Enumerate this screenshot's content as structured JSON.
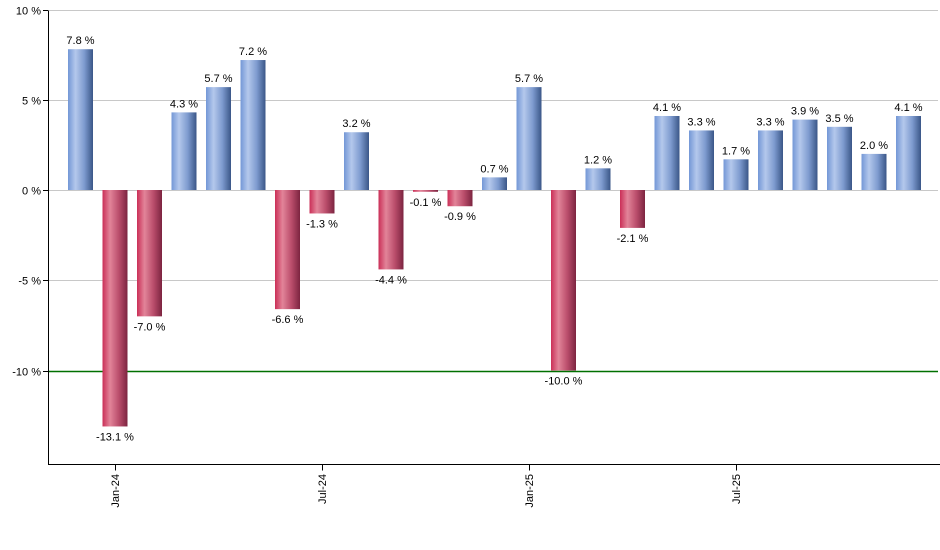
{
  "chart_data": {
    "type": "bar",
    "title": "",
    "xlabel": "",
    "ylabel": "",
    "unit": "%",
    "values": [
      7.8,
      -13.1,
      -7.0,
      4.3,
      5.7,
      7.2,
      -6.6,
      -1.3,
      3.2,
      -4.4,
      -0.1,
      -0.9,
      0.7,
      5.7,
      -10.0,
      1.2,
      -2.1,
      4.1,
      3.3,
      1.7,
      3.3,
      3.9,
      3.5,
      2.0,
      4.1
    ],
    "value_labels": [
      "7.8 %",
      "-13.1 %",
      "-7.0 %",
      "4.3 %",
      "5.7 %",
      "7.2 %",
      "-6.6 %",
      "-1.3 %",
      "3.2 %",
      "-4.4 %",
      "-0.1 %",
      "-0.9 %",
      "0.7 %",
      "5.7 %",
      "-10.0 %",
      "1.2 %",
      "-2.1 %",
      "4.1 %",
      "3.3 %",
      "1.7 %",
      "3.3 %",
      "3.9 %",
      "3.5 %",
      "2.0 %",
      "4.1 %"
    ],
    "x_ticks": [
      {
        "bar_index": 1,
        "label": "Jan-24"
      },
      {
        "bar_index": 7,
        "label": "Jul-24"
      },
      {
        "bar_index": 13,
        "label": "Jan-25"
      },
      {
        "bar_index": 19,
        "label": "Jul-25"
      }
    ],
    "y_ticks": [
      {
        "value": 10,
        "label": "10 %"
      },
      {
        "value": 5,
        "label": "5 %"
      },
      {
        "value": 0,
        "label": "0 %"
      },
      {
        "value": -5,
        "label": "-5 %"
      },
      {
        "value": -10,
        "label": "-10 %"
      }
    ],
    "ylim": [
      -15.1,
      10
    ],
    "grid": true,
    "legend_position": "none",
    "reference_line": {
      "value": -10,
      "color": "#007000"
    },
    "colors": {
      "positive_bar_gradient": [
        {
          "offset": "0%",
          "color": "#7397d6"
        },
        {
          "offset": "30%",
          "color": "#b4c8ec"
        },
        {
          "offset": "65%",
          "color": "#7e9bcf"
        },
        {
          "offset": "100%",
          "color": "#3a5688"
        }
      ],
      "negative_bar_gradient": [
        {
          "offset": "0%",
          "color": "#ca2f57"
        },
        {
          "offset": "30%",
          "color": "#e28499"
        },
        {
          "offset": "65%",
          "color": "#bb4e6c"
        },
        {
          "offset": "100%",
          "color": "#7c2440"
        }
      ],
      "gridline": "#c8c8c8",
      "axis": "#000000",
      "label_text": "#000000",
      "background": "#ffffff"
    }
  }
}
